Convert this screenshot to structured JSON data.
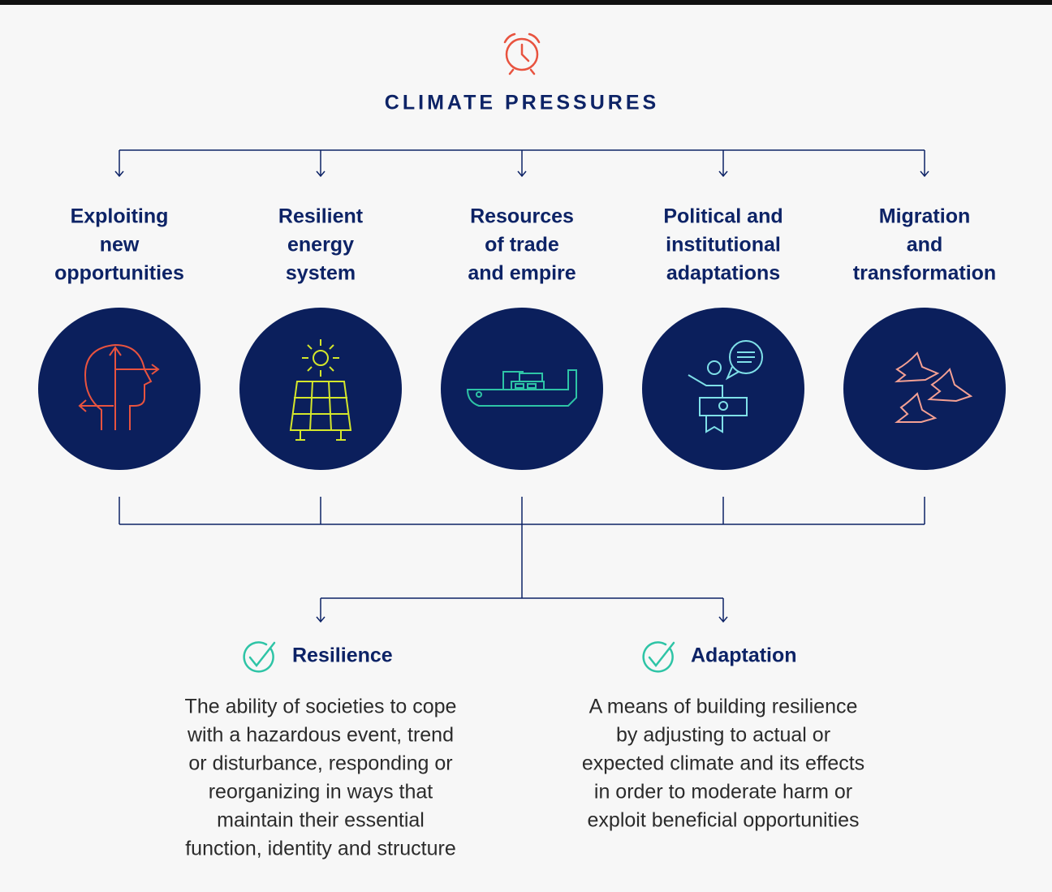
{
  "header": {
    "title": "CLIMATE PRESSURES"
  },
  "pressures": [
    {
      "label": [
        "Exploiting",
        "new",
        "opportunities"
      ]
    },
    {
      "label": [
        "Resilient",
        "energy",
        "system"
      ]
    },
    {
      "label": [
        "Resources",
        "of trade",
        "and empire"
      ]
    },
    {
      "label": [
        "Political and",
        "institutional",
        "adaptations"
      ]
    },
    {
      "label": [
        "Migration",
        "and",
        "transformation"
      ]
    }
  ],
  "outcomes": [
    {
      "title": "Resilience",
      "description": [
        "The ability of societies to cope",
        "with a hazardous event, trend",
        "or disturbance, responding or",
        "reorganizing in ways that",
        "maintain their essential",
        "function, identity and structure"
      ]
    },
    {
      "title": "Adaptation",
      "description": [
        "A means of building resilience",
        "by adjusting to actual or",
        "expected climate and its effects",
        "in order to moderate harm or",
        "exploit beneficial opportunities"
      ]
    }
  ]
}
